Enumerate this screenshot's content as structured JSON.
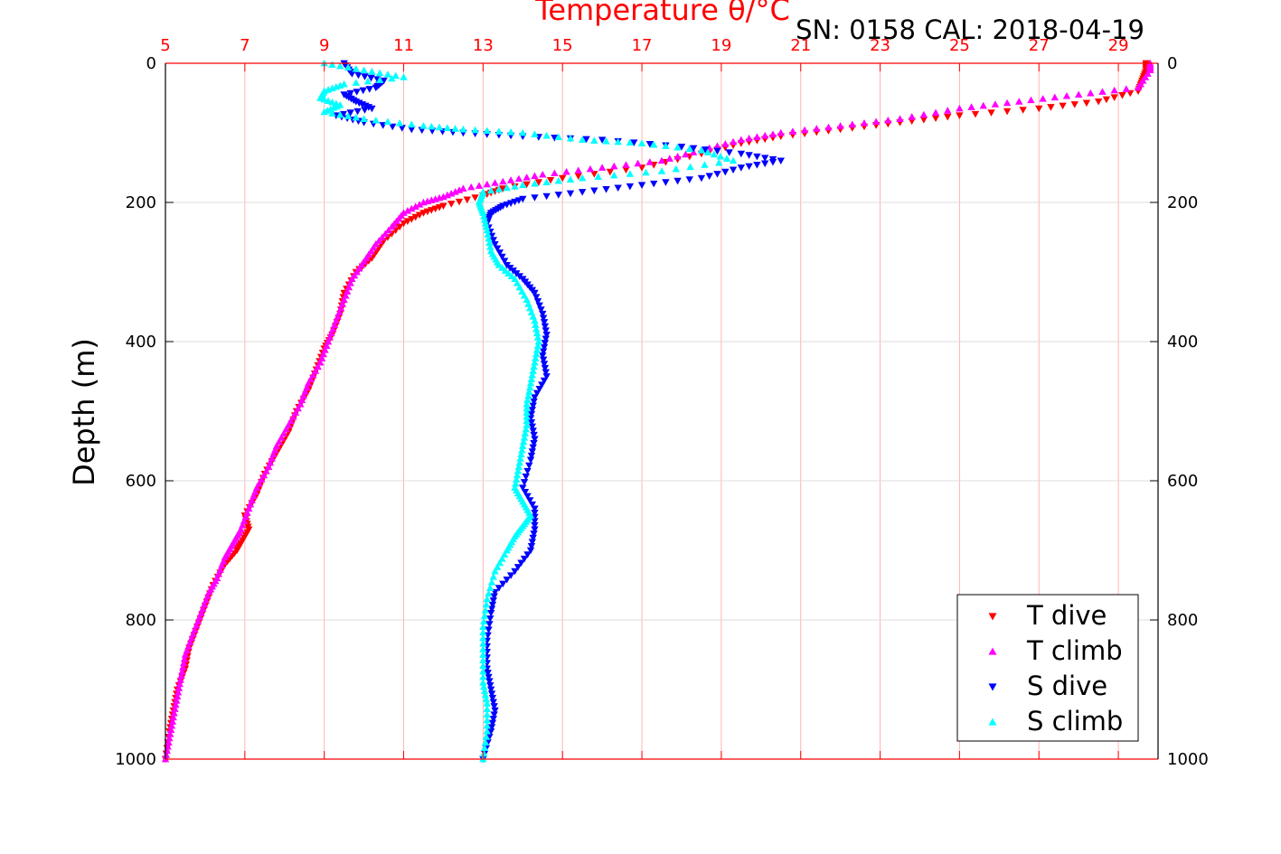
{
  "chart_data": {
    "type": "scatter",
    "title": "Temperature θ/°C",
    "subtitle": "SN: 0158  CAL: 2018-04-19",
    "xlabel": "Temperature θ/°C",
    "ylabel": "Depth (m)",
    "xlim": [
      5,
      30
    ],
    "ylim": [
      1000,
      0
    ],
    "x_ticks": [
      "5",
      "7",
      "9",
      "11",
      "13",
      "15",
      "17",
      "19",
      "21",
      "23",
      "25",
      "27",
      "29"
    ],
    "y_ticks": [
      "0",
      "200",
      "400",
      "600",
      "800",
      "1000"
    ],
    "grid": true,
    "legend_position": "bottom-right",
    "colors": {
      "title": "#ff0000",
      "axis": "#ff0000",
      "grid": "#ffb3b3",
      "frame": "#000000"
    },
    "series": [
      {
        "name": "T dive",
        "marker": "triangle-down",
        "color": "#ff0000",
        "points": [
          [
            29.7,
            0
          ],
          [
            29.7,
            10
          ],
          [
            29.6,
            25
          ],
          [
            29.5,
            40
          ],
          [
            28.5,
            55
          ],
          [
            27,
            65
          ],
          [
            25,
            75
          ],
          [
            23.5,
            85
          ],
          [
            22,
            95
          ],
          [
            20.5,
            105
          ],
          [
            19.5,
            115
          ],
          [
            18.5,
            130
          ],
          [
            17,
            150
          ],
          [
            15,
            165
          ],
          [
            13.5,
            180
          ],
          [
            13,
            190
          ],
          [
            12,
            205
          ],
          [
            11.5,
            215
          ],
          [
            11,
            230
          ],
          [
            10.5,
            255
          ],
          [
            10.2,
            280
          ],
          [
            9.8,
            300
          ],
          [
            9.5,
            330
          ],
          [
            9.4,
            360
          ],
          [
            9.2,
            390
          ],
          [
            9,
            410
          ],
          [
            8.8,
            440
          ],
          [
            8.6,
            470
          ],
          [
            8.3,
            500
          ],
          [
            8.1,
            530
          ],
          [
            7.8,
            560
          ],
          [
            7.5,
            590
          ],
          [
            7.3,
            620
          ],
          [
            7,
            650
          ],
          [
            7.1,
            670
          ],
          [
            6.9,
            690
          ],
          [
            6.8,
            700
          ],
          [
            6.5,
            720
          ],
          [
            6.2,
            750
          ],
          [
            6,
            780
          ],
          [
            5.8,
            810
          ],
          [
            5.6,
            840
          ],
          [
            5.5,
            870
          ],
          [
            5.3,
            900
          ],
          [
            5.2,
            930
          ],
          [
            5.1,
            960
          ],
          [
            5,
            1000
          ]
        ]
      },
      {
        "name": "T climb",
        "marker": "triangle-up",
        "color": "#ff00ff",
        "points": [
          [
            29.8,
            0
          ],
          [
            29.8,
            10
          ],
          [
            29.5,
            35
          ],
          [
            28,
            45
          ],
          [
            26.5,
            55
          ],
          [
            25,
            65
          ],
          [
            23.5,
            80
          ],
          [
            22,
            90
          ],
          [
            20.5,
            100
          ],
          [
            19.5,
            110
          ],
          [
            18.5,
            125
          ],
          [
            17.5,
            140
          ],
          [
            16,
            150
          ],
          [
            14.5,
            160
          ],
          [
            13.5,
            170
          ],
          [
            12.5,
            180
          ],
          [
            12,
            192
          ],
          [
            11.5,
            200
          ],
          [
            11,
            215
          ],
          [
            10.7,
            235
          ],
          [
            10.3,
            260
          ],
          [
            10,
            285
          ],
          [
            9.7,
            310
          ],
          [
            9.5,
            340
          ],
          [
            9.3,
            370
          ],
          [
            9.1,
            400
          ],
          [
            8.9,
            430
          ],
          [
            8.6,
            460
          ],
          [
            8.4,
            490
          ],
          [
            8.1,
            520
          ],
          [
            7.8,
            550
          ],
          [
            7.6,
            580
          ],
          [
            7.3,
            610
          ],
          [
            7.1,
            640
          ],
          [
            6.9,
            670
          ],
          [
            6.7,
            690
          ],
          [
            6.5,
            710
          ],
          [
            6.3,
            740
          ],
          [
            6.1,
            760
          ],
          [
            5.9,
            790
          ],
          [
            5.7,
            820
          ],
          [
            5.5,
            850
          ],
          [
            5.4,
            880
          ],
          [
            5.3,
            910
          ],
          [
            5.2,
            940
          ],
          [
            5.1,
            970
          ],
          [
            5,
            1000
          ]
        ]
      },
      {
        "name": "S dive",
        "marker": "triangle-down",
        "color": "#0000ff",
        "points": [
          [
            9.5,
            0
          ],
          [
            9.7,
            15
          ],
          [
            10.5,
            25
          ],
          [
            10.3,
            35
          ],
          [
            9.5,
            45
          ],
          [
            9.8,
            55
          ],
          [
            10.2,
            65
          ],
          [
            9.3,
            75
          ],
          [
            10,
            85
          ],
          [
            11.2,
            95
          ],
          [
            12.5,
            100
          ],
          [
            14,
            105
          ],
          [
            16,
            110
          ],
          [
            18,
            120
          ],
          [
            19.5,
            130
          ],
          [
            20.5,
            140
          ],
          [
            19.5,
            150
          ],
          [
            18.5,
            165
          ],
          [
            17,
            175
          ],
          [
            15.5,
            185
          ],
          [
            14,
            195
          ],
          [
            13.5,
            205
          ],
          [
            13.2,
            215
          ],
          [
            13.1,
            230
          ],
          [
            13.3,
            260
          ],
          [
            13.6,
            290
          ],
          [
            14,
            310
          ],
          [
            14.3,
            330
          ],
          [
            14.5,
            360
          ],
          [
            14.6,
            390
          ],
          [
            14.5,
            420
          ],
          [
            14.6,
            450
          ],
          [
            14.3,
            480
          ],
          [
            14.2,
            510
          ],
          [
            14.3,
            540
          ],
          [
            14.2,
            570
          ],
          [
            14,
            610
          ],
          [
            14.3,
            640
          ],
          [
            14.3,
            670
          ],
          [
            14.2,
            700
          ],
          [
            13.8,
            730
          ],
          [
            13.3,
            760
          ],
          [
            13.2,
            790
          ],
          [
            13.1,
            830
          ],
          [
            13.1,
            870
          ],
          [
            13.2,
            900
          ],
          [
            13.3,
            930
          ],
          [
            13.2,
            960
          ],
          [
            13,
            1000
          ]
        ]
      },
      {
        "name": "S climb",
        "marker": "triangle-up",
        "color": "#00ffff",
        "points": [
          [
            9,
            0
          ],
          [
            10,
            10
          ],
          [
            11,
            20
          ],
          [
            9.5,
            30
          ],
          [
            9,
            40
          ],
          [
            8.9,
            50
          ],
          [
            9.4,
            60
          ],
          [
            9,
            70
          ],
          [
            10,
            80
          ],
          [
            11.5,
            90
          ],
          [
            12.5,
            95
          ],
          [
            14,
            100
          ],
          [
            15.5,
            110
          ],
          [
            17,
            115
          ],
          [
            18.5,
            125
          ],
          [
            19.3,
            140
          ],
          [
            17.5,
            155
          ],
          [
            15.5,
            165
          ],
          [
            14,
            175
          ],
          [
            13,
            185
          ],
          [
            12.9,
            200
          ],
          [
            13,
            215
          ],
          [
            13.1,
            240
          ],
          [
            13.2,
            270
          ],
          [
            13.4,
            290
          ],
          [
            13.8,
            310
          ],
          [
            14.1,
            340
          ],
          [
            14.3,
            370
          ],
          [
            14.4,
            400
          ],
          [
            14.3,
            430
          ],
          [
            14.2,
            460
          ],
          [
            14.1,
            490
          ],
          [
            14.1,
            520
          ],
          [
            14,
            550
          ],
          [
            13.9,
            580
          ],
          [
            13.8,
            610
          ],
          [
            14,
            630
          ],
          [
            14.2,
            650
          ],
          [
            14,
            665
          ],
          [
            13.8,
            680
          ],
          [
            13.6,
            700
          ],
          [
            13.3,
            730
          ],
          [
            13.1,
            770
          ],
          [
            13,
            810
          ],
          [
            13,
            850
          ],
          [
            13,
            890
          ],
          [
            13.1,
            920
          ],
          [
            13.1,
            960
          ],
          [
            13,
            1000
          ]
        ]
      }
    ]
  }
}
